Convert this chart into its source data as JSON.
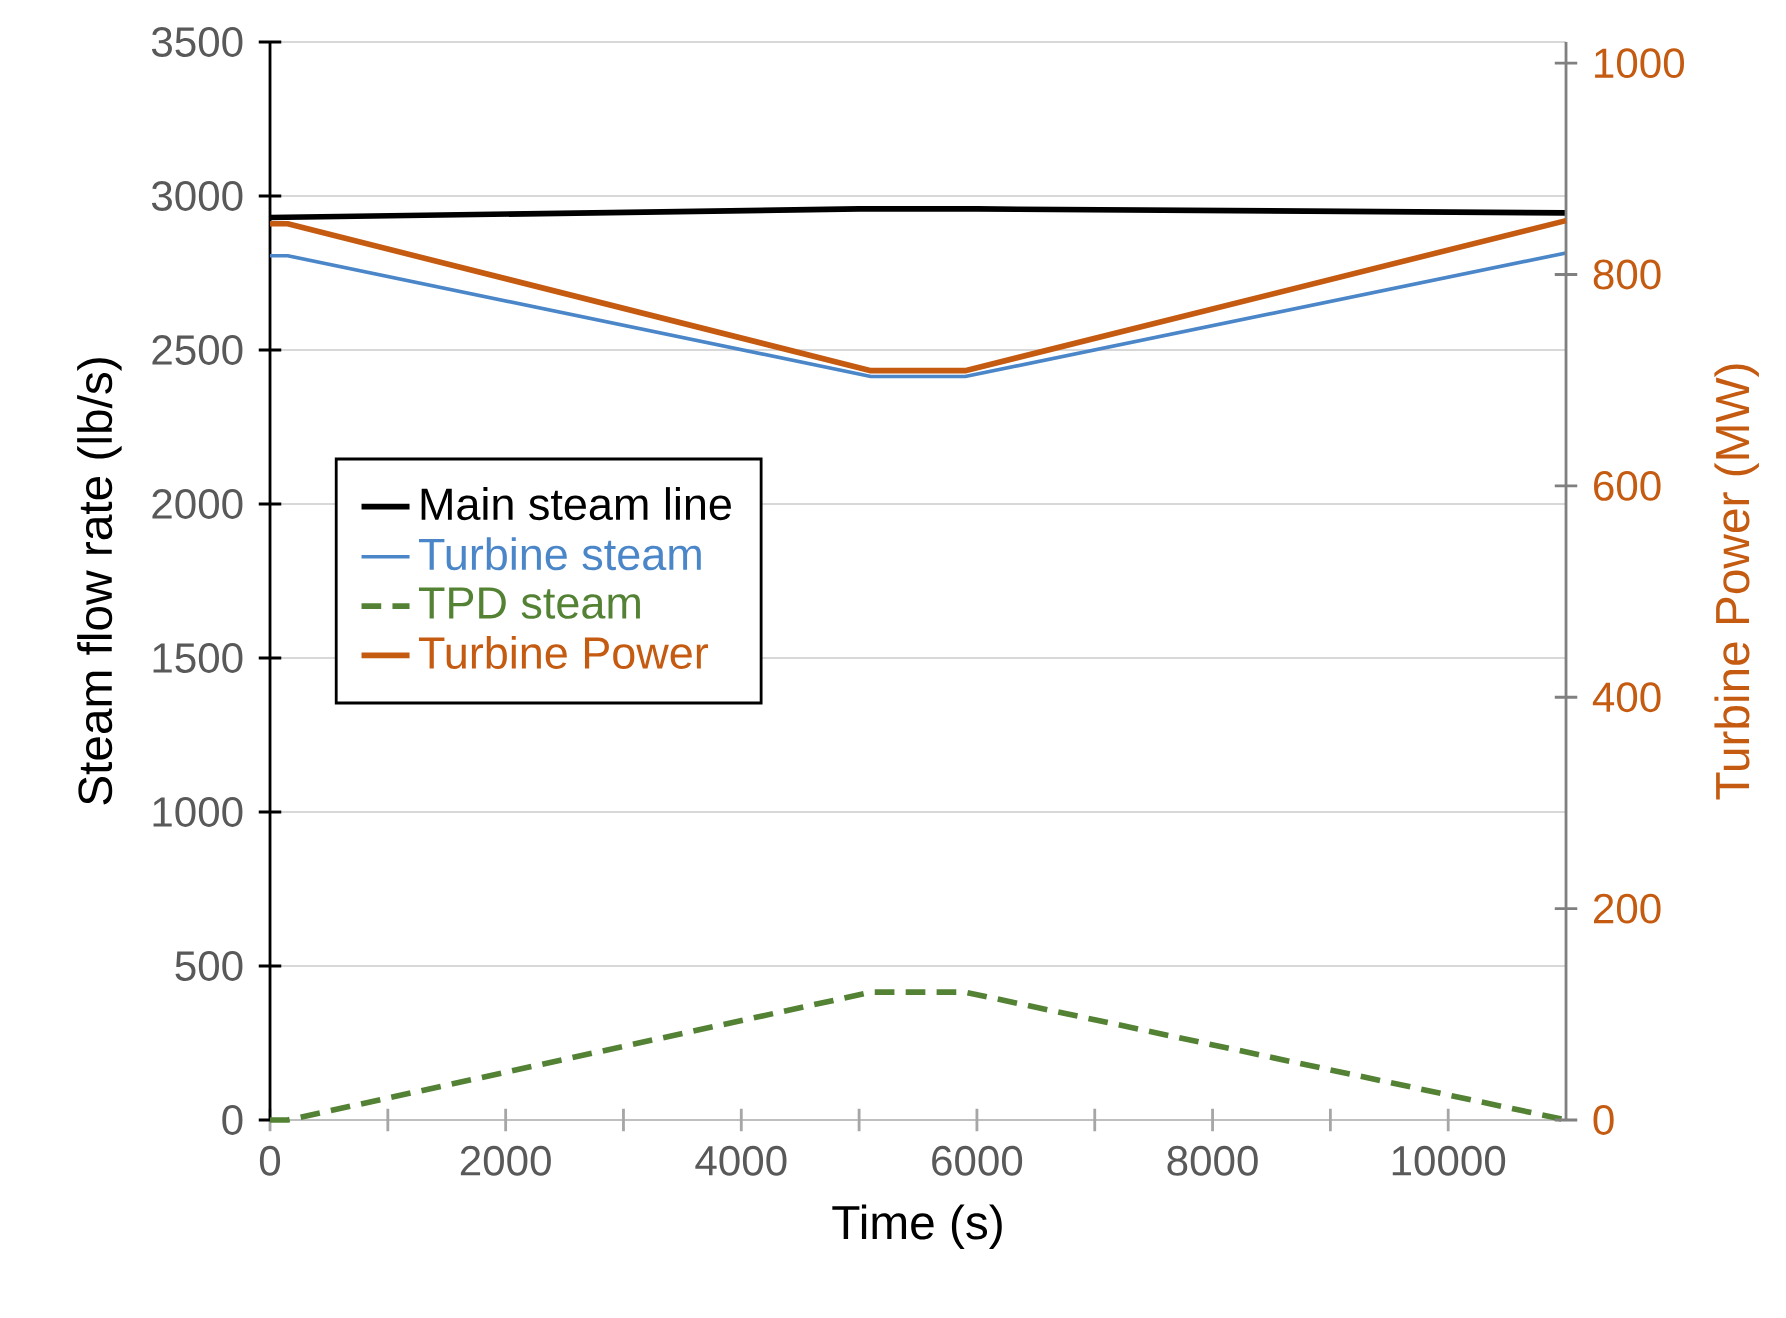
{
  "chart_data": {
    "type": "line",
    "xlabel": "Time (s)",
    "ylabel": "Steam flow rate (lb/s)",
    "y2label": "Turbine Power (MW)",
    "xlim": [
      0,
      11000
    ],
    "xticks": [
      0,
      {
        "value": 1000,
        "label": null
      },
      2000,
      {
        "value": 3000,
        "label": null
      },
      4000,
      {
        "value": 5000,
        "label": null
      },
      6000,
      {
        "value": 7000,
        "label": null
      },
      8000,
      {
        "value": 9000,
        "label": null
      },
      10000
    ],
    "ylim": [
      0,
      3500
    ],
    "yticks": [
      0,
      500,
      1000,
      1500,
      2000,
      2500,
      3000,
      3500
    ],
    "y2lim": [
      0,
      1020
    ],
    "y2ticks": [
      0,
      200,
      400,
      600,
      800,
      1000
    ],
    "grid": "y",
    "legend": "left",
    "marker": "none",
    "series": [
      {
        "name": "Main steam line",
        "color": "#000000",
        "x": [
          0,
          5000,
          6000,
          11000
        ],
        "values": [
          2930,
          2958,
          2958,
          2945
        ]
      },
      {
        "name": "Turbine steam",
        "color": "#4a86c8",
        "x": [
          0,
          150,
          5100,
          5900,
          11000
        ],
        "values": [
          2806,
          2806,
          2414,
          2414,
          2815
        ]
      },
      {
        "name": "TPD steam",
        "color": "#548235",
        "line_style": "dashed",
        "x": [
          0,
          150,
          5100,
          5900,
          11000
        ],
        "values": [
          0,
          0,
          415,
          415,
          0
        ]
      },
      {
        "name": "Turbine Power",
        "color": "#c55a11",
        "axis": "y2",
        "x": [
          0,
          150,
          5100,
          5900,
          11000
        ],
        "values": [
          848,
          848,
          709,
          709,
          851
        ]
      }
    ]
  }
}
